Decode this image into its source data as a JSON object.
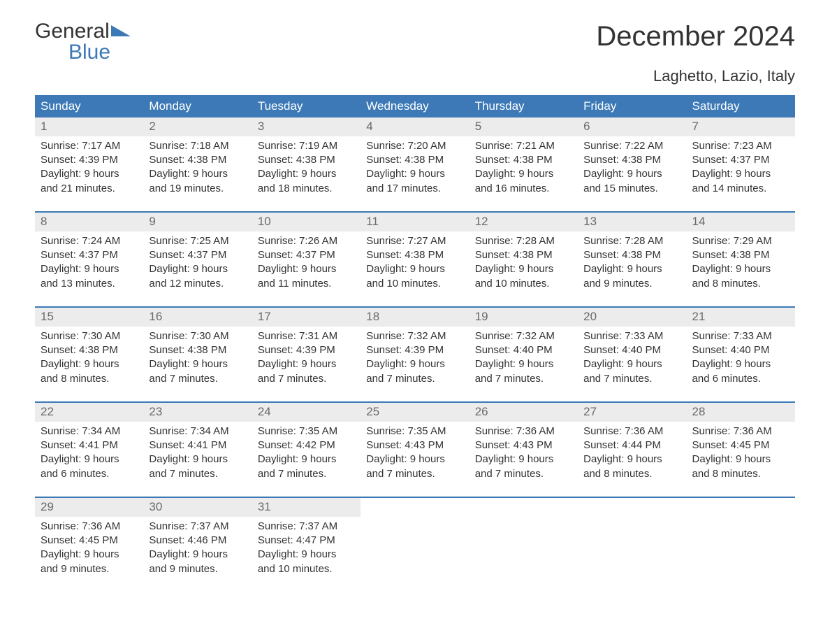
{
  "brand": {
    "line1": "General",
    "line2": "Blue"
  },
  "title": "December 2024",
  "subtitle": "Laghetto, Lazio, Italy",
  "colors": {
    "accent": "#3c79b6",
    "header_band_bg": "#ececec",
    "header_band_text": "#6a6a6a",
    "background": "#ffffff",
    "text": "#333333"
  },
  "weekdays": [
    "Sunday",
    "Monday",
    "Tuesday",
    "Wednesday",
    "Thursday",
    "Friday",
    "Saturday"
  ],
  "labels": {
    "sunrise": "Sunrise:",
    "sunset": "Sunset:",
    "daylight": "Daylight:"
  },
  "weeks": [
    [
      {
        "day": "1",
        "sunrise": "7:17 AM",
        "sunset": "4:39 PM",
        "daylight": "9 hours and 21 minutes."
      },
      {
        "day": "2",
        "sunrise": "7:18 AM",
        "sunset": "4:38 PM",
        "daylight": "9 hours and 19 minutes."
      },
      {
        "day": "3",
        "sunrise": "7:19 AM",
        "sunset": "4:38 PM",
        "daylight": "9 hours and 18 minutes."
      },
      {
        "day": "4",
        "sunrise": "7:20 AM",
        "sunset": "4:38 PM",
        "daylight": "9 hours and 17 minutes."
      },
      {
        "day": "5",
        "sunrise": "7:21 AM",
        "sunset": "4:38 PM",
        "daylight": "9 hours and 16 minutes."
      },
      {
        "day": "6",
        "sunrise": "7:22 AM",
        "sunset": "4:38 PM",
        "daylight": "9 hours and 15 minutes."
      },
      {
        "day": "7",
        "sunrise": "7:23 AM",
        "sunset": "4:37 PM",
        "daylight": "9 hours and 14 minutes."
      }
    ],
    [
      {
        "day": "8",
        "sunrise": "7:24 AM",
        "sunset": "4:37 PM",
        "daylight": "9 hours and 13 minutes."
      },
      {
        "day": "9",
        "sunrise": "7:25 AM",
        "sunset": "4:37 PM",
        "daylight": "9 hours and 12 minutes."
      },
      {
        "day": "10",
        "sunrise": "7:26 AM",
        "sunset": "4:37 PM",
        "daylight": "9 hours and 11 minutes."
      },
      {
        "day": "11",
        "sunrise": "7:27 AM",
        "sunset": "4:38 PM",
        "daylight": "9 hours and 10 minutes."
      },
      {
        "day": "12",
        "sunrise": "7:28 AM",
        "sunset": "4:38 PM",
        "daylight": "9 hours and 10 minutes."
      },
      {
        "day": "13",
        "sunrise": "7:28 AM",
        "sunset": "4:38 PM",
        "daylight": "9 hours and 9 minutes."
      },
      {
        "day": "14",
        "sunrise": "7:29 AM",
        "sunset": "4:38 PM",
        "daylight": "9 hours and 8 minutes."
      }
    ],
    [
      {
        "day": "15",
        "sunrise": "7:30 AM",
        "sunset": "4:38 PM",
        "daylight": "9 hours and 8 minutes."
      },
      {
        "day": "16",
        "sunrise": "7:30 AM",
        "sunset": "4:38 PM",
        "daylight": "9 hours and 7 minutes."
      },
      {
        "day": "17",
        "sunrise": "7:31 AM",
        "sunset": "4:39 PM",
        "daylight": "9 hours and 7 minutes."
      },
      {
        "day": "18",
        "sunrise": "7:32 AM",
        "sunset": "4:39 PM",
        "daylight": "9 hours and 7 minutes."
      },
      {
        "day": "19",
        "sunrise": "7:32 AM",
        "sunset": "4:40 PM",
        "daylight": "9 hours and 7 minutes."
      },
      {
        "day": "20",
        "sunrise": "7:33 AM",
        "sunset": "4:40 PM",
        "daylight": "9 hours and 7 minutes."
      },
      {
        "day": "21",
        "sunrise": "7:33 AM",
        "sunset": "4:40 PM",
        "daylight": "9 hours and 6 minutes."
      }
    ],
    [
      {
        "day": "22",
        "sunrise": "7:34 AM",
        "sunset": "4:41 PM",
        "daylight": "9 hours and 6 minutes."
      },
      {
        "day": "23",
        "sunrise": "7:34 AM",
        "sunset": "4:41 PM",
        "daylight": "9 hours and 7 minutes."
      },
      {
        "day": "24",
        "sunrise": "7:35 AM",
        "sunset": "4:42 PM",
        "daylight": "9 hours and 7 minutes."
      },
      {
        "day": "25",
        "sunrise": "7:35 AM",
        "sunset": "4:43 PM",
        "daylight": "9 hours and 7 minutes."
      },
      {
        "day": "26",
        "sunrise": "7:36 AM",
        "sunset": "4:43 PM",
        "daylight": "9 hours and 7 minutes."
      },
      {
        "day": "27",
        "sunrise": "7:36 AM",
        "sunset": "4:44 PM",
        "daylight": "9 hours and 8 minutes."
      },
      {
        "day": "28",
        "sunrise": "7:36 AM",
        "sunset": "4:45 PM",
        "daylight": "9 hours and 8 minutes."
      }
    ],
    [
      {
        "day": "29",
        "sunrise": "7:36 AM",
        "sunset": "4:45 PM",
        "daylight": "9 hours and 9 minutes."
      },
      {
        "day": "30",
        "sunrise": "7:37 AM",
        "sunset": "4:46 PM",
        "daylight": "9 hours and 9 minutes."
      },
      {
        "day": "31",
        "sunrise": "7:37 AM",
        "sunset": "4:47 PM",
        "daylight": "9 hours and 10 minutes."
      },
      {
        "empty": true
      },
      {
        "empty": true
      },
      {
        "empty": true
      },
      {
        "empty": true
      }
    ]
  ]
}
